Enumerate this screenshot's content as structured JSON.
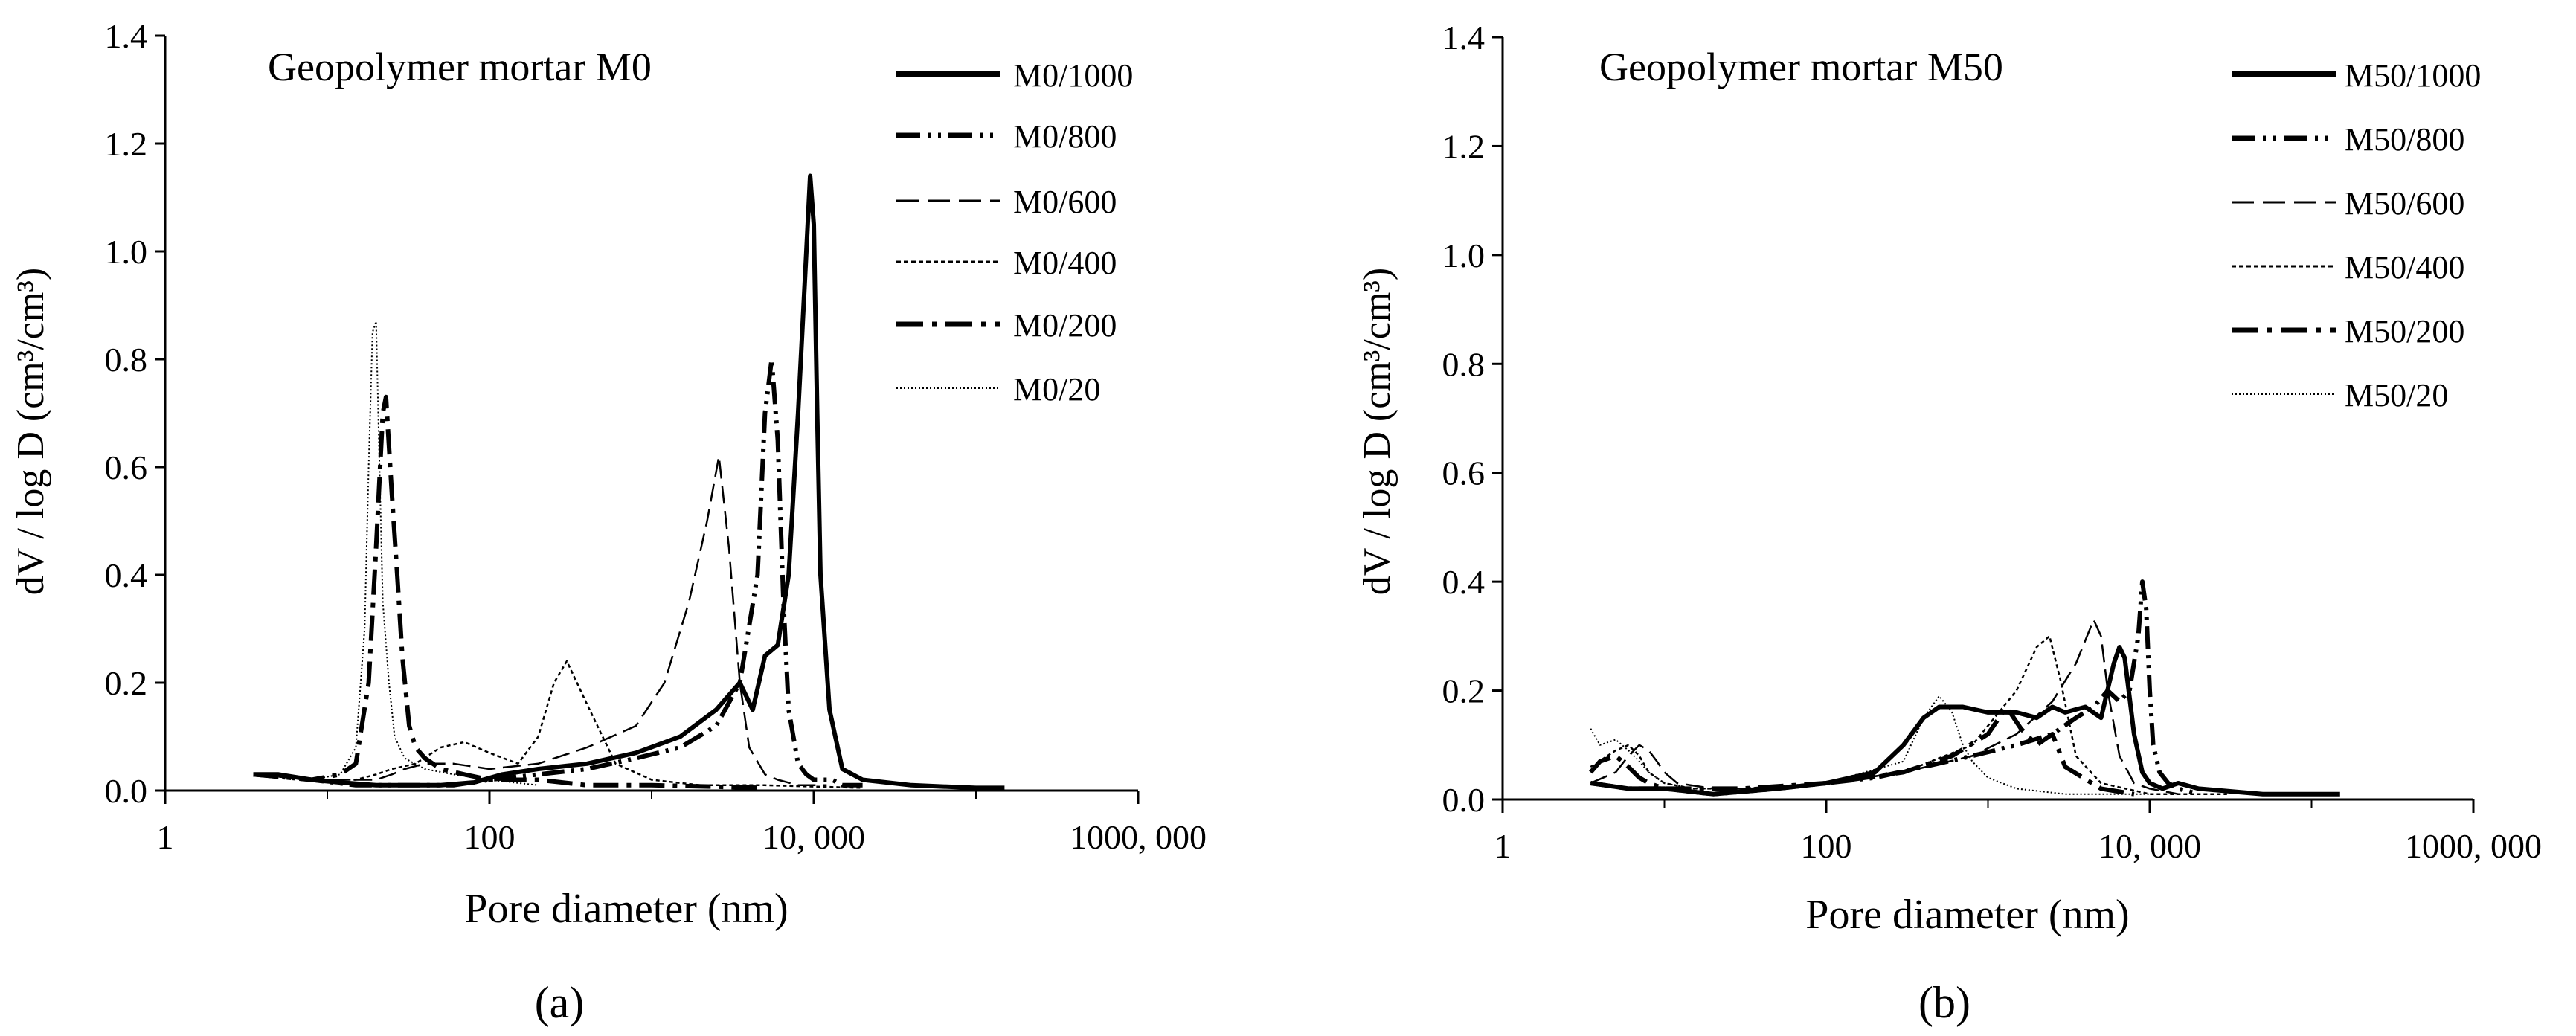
{
  "chart_data": [
    {
      "type": "line",
      "title": "Geopolymer mortar M0",
      "caption": "(a)",
      "xlabel": "Pore diameter (nm)",
      "ylabel": "dV / log D (cm³/cm³)",
      "x_scale": "log",
      "xlim": [
        1,
        1000000
      ],
      "ylim": [
        0,
        1.4
      ],
      "x_ticks": [
        {
          "value": 1,
          "label": "1"
        },
        {
          "value": 100,
          "label": "100"
        },
        {
          "value": 10000,
          "label": "10, 000"
        },
        {
          "value": 1000000,
          "label": "1000, 000"
        }
      ],
      "y_ticks": [
        {
          "value": 0,
          "label": "0.0"
        },
        {
          "value": 0.2,
          "label": "0.2"
        },
        {
          "value": 0.4,
          "label": "0.4"
        },
        {
          "value": 0.6,
          "label": "0.6"
        },
        {
          "value": 0.8,
          "label": "0.8"
        },
        {
          "value": 1.0,
          "label": "1.0"
        },
        {
          "value": 1.2,
          "label": "1.2"
        },
        {
          "value": 1.4,
          "label": "1.4"
        }
      ],
      "legend_position": "top-right",
      "series": [
        {
          "name": "M0/1000",
          "style": "solid-thick",
          "x": [
            3.5,
            5,
            8,
            12,
            20,
            30,
            50,
            80,
            120,
            200,
            400,
            800,
            1500,
            2500,
            3500,
            4200,
            5000,
            6000,
            7000,
            8000,
            9000,
            9500,
            10000,
            10500,
            11000,
            12500,
            15000,
            20000,
            40000,
            100000,
            150000
          ],
          "y": [
            0.03,
            0.03,
            0.02,
            0.015,
            0.01,
            0.01,
            0.01,
            0.015,
            0.03,
            0.04,
            0.05,
            0.07,
            0.1,
            0.15,
            0.2,
            0.15,
            0.25,
            0.27,
            0.4,
            0.7,
            1.0,
            1.14,
            1.05,
            0.7,
            0.4,
            0.15,
            0.04,
            0.02,
            0.01,
            0.005,
            0.005
          ]
        },
        {
          "name": "M0/800",
          "style": "dash-dot-dot-thick",
          "x": [
            3.5,
            8,
            15,
            20,
            25,
            30,
            40,
            60,
            100,
            200,
            400,
            800,
            1500,
            2500,
            3500,
            4500,
            5000,
            5500,
            6000,
            6500,
            7000,
            8000,
            9000,
            10000,
            11000,
            12000,
            13000,
            15000,
            20000
          ],
          "y": [
            0.03,
            0.02,
            0.01,
            0.01,
            0.01,
            0.01,
            0.01,
            0.01,
            0.02,
            0.03,
            0.04,
            0.06,
            0.08,
            0.12,
            0.2,
            0.4,
            0.7,
            0.8,
            0.65,
            0.35,
            0.15,
            0.05,
            0.03,
            0.02,
            0.02,
            0.02,
            0.02,
            0.01,
            0.01
          ]
        },
        {
          "name": "M0/600",
          "style": "dashed",
          "x": [
            3.5,
            8,
            15,
            20,
            25,
            30,
            40,
            60,
            100,
            200,
            400,
            800,
            1200,
            1700,
            2200,
            2600,
            3000,
            3500,
            4000,
            5000,
            6000,
            8000,
            12000
          ],
          "y": [
            0.03,
            0.02,
            0.02,
            0.02,
            0.03,
            0.04,
            0.05,
            0.05,
            0.04,
            0.05,
            0.08,
            0.12,
            0.2,
            0.35,
            0.5,
            0.62,
            0.45,
            0.2,
            0.08,
            0.03,
            0.02,
            0.01,
            0.01
          ]
        },
        {
          "name": "M0/400",
          "style": "dotted-dense",
          "x": [
            3.5,
            8,
            15,
            20,
            25,
            35,
            50,
            70,
            100,
            150,
            200,
            250,
            300,
            400,
            600,
            1000,
            2000,
            5000,
            20000
          ],
          "y": [
            0.03,
            0.02,
            0.02,
            0.03,
            0.04,
            0.05,
            0.08,
            0.09,
            0.07,
            0.05,
            0.1,
            0.2,
            0.24,
            0.16,
            0.05,
            0.02,
            0.01,
            0.01,
            0.005
          ]
        },
        {
          "name": "M0/200",
          "style": "dash-dot-thick",
          "x": [
            3.5,
            8,
            12,
            15,
            18,
            20,
            22,
            23,
            25,
            27,
            29,
            32,
            35,
            40,
            50,
            70,
            100,
            200,
            400,
            1000,
            5000
          ],
          "y": [
            0.03,
            0.02,
            0.03,
            0.05,
            0.2,
            0.45,
            0.7,
            0.73,
            0.55,
            0.4,
            0.25,
            0.12,
            0.08,
            0.06,
            0.04,
            0.03,
            0.02,
            0.02,
            0.01,
            0.01,
            0.005
          ]
        },
        {
          "name": "M0/20",
          "style": "dotted-fine",
          "x": [
            3.5,
            8,
            12,
            15,
            17,
            18,
            19,
            20,
            21,
            22,
            24,
            26,
            30,
            40,
            60,
            100,
            200
          ],
          "y": [
            0.03,
            0.02,
            0.03,
            0.08,
            0.3,
            0.6,
            0.85,
            0.87,
            0.6,
            0.35,
            0.2,
            0.1,
            0.06,
            0.04,
            0.03,
            0.02,
            0.01
          ]
        }
      ]
    },
    {
      "type": "line",
      "title": "Geopolymer mortar M50",
      "caption": "(b)",
      "xlabel": "Pore diameter (nm)",
      "ylabel": "dV / log D (cm³/cm³)",
      "x_scale": "log",
      "xlim": [
        1,
        1000000
      ],
      "ylim": [
        0,
        1.4
      ],
      "x_ticks": [
        {
          "value": 1,
          "label": "1"
        },
        {
          "value": 100,
          "label": "100"
        },
        {
          "value": 10000,
          "label": "10, 000"
        },
        {
          "value": 1000000,
          "label": "1000, 000"
        }
      ],
      "y_ticks": [
        {
          "value": 0,
          "label": "0.0"
        },
        {
          "value": 0.2,
          "label": "0.2"
        },
        {
          "value": 0.4,
          "label": "0.4"
        },
        {
          "value": 0.6,
          "label": "0.6"
        },
        {
          "value": 0.8,
          "label": "0.8"
        },
        {
          "value": 1.0,
          "label": "1.0"
        },
        {
          "value": 1.2,
          "label": "1.2"
        },
        {
          "value": 1.4,
          "label": "1.4"
        }
      ],
      "legend_position": "top-right",
      "series": [
        {
          "name": "M50/1000",
          "style": "solid-thick",
          "x": [
            3.5,
            6,
            10,
            20,
            50,
            100,
            200,
            300,
            400,
            500,
            700,
            1000,
            1500,
            2000,
            2500,
            3000,
            4000,
            5000,
            6000,
            6500,
            7000,
            8000,
            9000,
            10000,
            12000,
            15000,
            20000,
            50000,
            100000,
            150000
          ],
          "y": [
            0.03,
            0.02,
            0.02,
            0.01,
            0.02,
            0.03,
            0.05,
            0.1,
            0.15,
            0.17,
            0.17,
            0.16,
            0.16,
            0.15,
            0.17,
            0.16,
            0.17,
            0.15,
            0.25,
            0.28,
            0.26,
            0.12,
            0.05,
            0.03,
            0.02,
            0.03,
            0.02,
            0.01,
            0.01,
            0.01
          ]
        },
        {
          "name": "M50/800",
          "style": "dash-dot-dot-thick",
          "x": [
            3.5,
            6,
            10,
            20,
            50,
            100,
            200,
            400,
            800,
            1500,
            2500,
            3500,
            4500,
            5500,
            6500,
            7500,
            8500,
            9000,
            9500,
            10000,
            10500,
            11500,
            13000,
            15000,
            20000
          ],
          "y": [
            0.03,
            0.02,
            0.02,
            0.01,
            0.02,
            0.03,
            0.04,
            0.06,
            0.08,
            0.1,
            0.12,
            0.15,
            0.17,
            0.2,
            0.18,
            0.2,
            0.3,
            0.4,
            0.35,
            0.2,
            0.1,
            0.05,
            0.03,
            0.02,
            0.01
          ]
        },
        {
          "name": "M50/600",
          "style": "dashed",
          "x": [
            3.5,
            5,
            6,
            7,
            8,
            9,
            10,
            12,
            20,
            50,
            100,
            300,
            800,
            1500,
            2500,
            3500,
            4500,
            5000,
            5500,
            6500,
            8000,
            10000,
            15000
          ],
          "y": [
            0.03,
            0.05,
            0.08,
            0.1,
            0.09,
            0.07,
            0.05,
            0.03,
            0.02,
            0.02,
            0.03,
            0.05,
            0.08,
            0.12,
            0.18,
            0.25,
            0.33,
            0.3,
            0.2,
            0.08,
            0.03,
            0.02,
            0.01
          ]
        },
        {
          "name": "M50/400",
          "style": "dotted-dense",
          "x": [
            3.5,
            5,
            6,
            7,
            8,
            10,
            15,
            30,
            100,
            300,
            800,
            1500,
            2000,
            2400,
            2800,
            3500,
            5000,
            10000,
            30000
          ],
          "y": [
            0.06,
            0.09,
            0.1,
            0.08,
            0.05,
            0.03,
            0.02,
            0.02,
            0.03,
            0.05,
            0.1,
            0.2,
            0.28,
            0.3,
            0.22,
            0.08,
            0.03,
            0.01,
            0.01
          ]
        },
        {
          "name": "M50/200",
          "style": "dash-dot-thick",
          "x": [
            3.5,
            4,
            5,
            6,
            7,
            8,
            10,
            15,
            30,
            100,
            300,
            600,
            1000,
            1300,
            1600,
            2000,
            2500,
            3000,
            5000,
            8000
          ],
          "y": [
            0.05,
            0.07,
            0.08,
            0.06,
            0.04,
            0.03,
            0.02,
            0.02,
            0.02,
            0.03,
            0.05,
            0.08,
            0.12,
            0.17,
            0.13,
            0.1,
            0.12,
            0.06,
            0.02,
            0.01
          ]
        },
        {
          "name": "M50/20",
          "style": "dotted-fine",
          "x": [
            3.5,
            4,
            5,
            6,
            7,
            8,
            10,
            15,
            30,
            100,
            300,
            400,
            500,
            600,
            700,
            800,
            1000,
            1500,
            3000,
            10000
          ],
          "y": [
            0.13,
            0.1,
            0.11,
            0.09,
            0.07,
            0.05,
            0.03,
            0.02,
            0.02,
            0.03,
            0.07,
            0.15,
            0.19,
            0.16,
            0.1,
            0.07,
            0.04,
            0.02,
            0.01,
            0.01
          ]
        }
      ]
    }
  ]
}
